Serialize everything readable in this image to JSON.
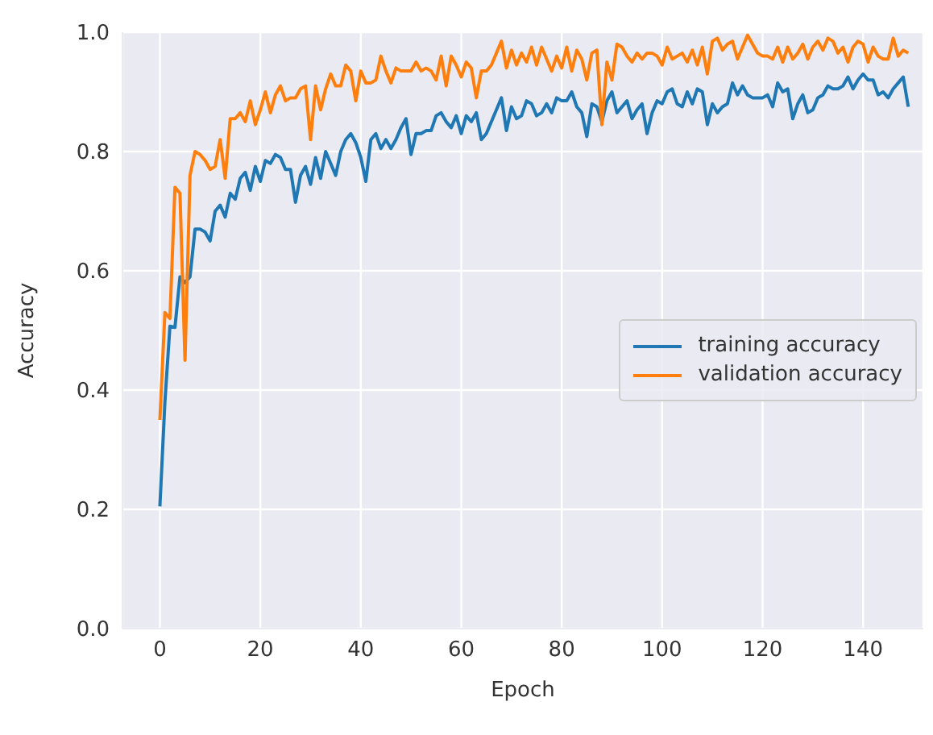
{
  "chart_data": {
    "type": "line",
    "xlabel": "Epoch",
    "ylabel": "Accuracy",
    "x": [
      0,
      1,
      2,
      3,
      4,
      5,
      6,
      7,
      8,
      9,
      10,
      11,
      12,
      13,
      14,
      15,
      16,
      17,
      18,
      19,
      20,
      21,
      22,
      23,
      24,
      25,
      26,
      27,
      28,
      29,
      30,
      31,
      32,
      33,
      34,
      35,
      36,
      37,
      38,
      39,
      40,
      41,
      42,
      43,
      44,
      45,
      46,
      47,
      48,
      49,
      50,
      51,
      52,
      53,
      54,
      55,
      56,
      57,
      58,
      59,
      60,
      61,
      62,
      63,
      64,
      65,
      66,
      67,
      68,
      69,
      70,
      71,
      72,
      73,
      74,
      75,
      76,
      77,
      78,
      79,
      80,
      81,
      82,
      83,
      84,
      85,
      86,
      87,
      88,
      89,
      90,
      91,
      92,
      93,
      94,
      95,
      96,
      97,
      98,
      99,
      100,
      101,
      102,
      103,
      104,
      105,
      106,
      107,
      108,
      109,
      110,
      111,
      112,
      113,
      114,
      115,
      116,
      117,
      118,
      119,
      120,
      121,
      122,
      123,
      124,
      125,
      126,
      127,
      128,
      129,
      130,
      131,
      132,
      133,
      134,
      135,
      136,
      137,
      138,
      139,
      140,
      141,
      142,
      143,
      144,
      145,
      146,
      147,
      148,
      149
    ],
    "series": [
      {
        "name": "training accuracy",
        "color": "#1f77b4",
        "values": [
          0.205,
          0.38,
          0.507,
          0.505,
          0.59,
          0.58,
          0.59,
          0.67,
          0.67,
          0.665,
          0.65,
          0.7,
          0.71,
          0.69,
          0.73,
          0.72,
          0.755,
          0.765,
          0.735,
          0.775,
          0.75,
          0.785,
          0.78,
          0.795,
          0.79,
          0.77,
          0.77,
          0.715,
          0.76,
          0.775,
          0.745,
          0.79,
          0.755,
          0.8,
          0.78,
          0.76,
          0.8,
          0.82,
          0.83,
          0.815,
          0.79,
          0.75,
          0.82,
          0.83,
          0.805,
          0.82,
          0.805,
          0.82,
          0.84,
          0.855,
          0.795,
          0.83,
          0.83,
          0.835,
          0.835,
          0.86,
          0.865,
          0.85,
          0.84,
          0.86,
          0.83,
          0.86,
          0.85,
          0.865,
          0.82,
          0.83,
          0.85,
          0.87,
          0.89,
          0.835,
          0.875,
          0.855,
          0.86,
          0.885,
          0.88,
          0.86,
          0.865,
          0.88,
          0.865,
          0.89,
          0.885,
          0.885,
          0.9,
          0.875,
          0.865,
          0.825,
          0.88,
          0.875,
          0.85,
          0.885,
          0.9,
          0.865,
          0.875,
          0.885,
          0.855,
          0.87,
          0.88,
          0.83,
          0.865,
          0.885,
          0.88,
          0.9,
          0.905,
          0.88,
          0.875,
          0.9,
          0.88,
          0.905,
          0.9,
          0.845,
          0.88,
          0.865,
          0.875,
          0.88,
          0.915,
          0.895,
          0.91,
          0.895,
          0.89,
          0.89,
          0.89,
          0.895,
          0.875,
          0.915,
          0.9,
          0.905,
          0.855,
          0.88,
          0.895,
          0.865,
          0.87,
          0.89,
          0.895,
          0.91,
          0.905,
          0.905,
          0.91,
          0.925,
          0.905,
          0.92,
          0.93,
          0.92,
          0.92,
          0.895,
          0.9,
          0.89,
          0.905,
          0.915,
          0.925,
          0.875
        ]
      },
      {
        "name": "validation accuracy",
        "color": "#ff7f0e",
        "values": [
          0.35,
          0.53,
          0.52,
          0.74,
          0.73,
          0.45,
          0.76,
          0.8,
          0.795,
          0.785,
          0.77,
          0.775,
          0.82,
          0.755,
          0.855,
          0.855,
          0.865,
          0.85,
          0.885,
          0.845,
          0.87,
          0.9,
          0.865,
          0.895,
          0.91,
          0.885,
          0.89,
          0.89,
          0.905,
          0.91,
          0.82,
          0.91,
          0.87,
          0.905,
          0.93,
          0.91,
          0.91,
          0.945,
          0.935,
          0.885,
          0.935,
          0.915,
          0.915,
          0.92,
          0.96,
          0.935,
          0.915,
          0.94,
          0.935,
          0.935,
          0.935,
          0.95,
          0.935,
          0.94,
          0.935,
          0.92,
          0.96,
          0.91,
          0.96,
          0.945,
          0.925,
          0.95,
          0.94,
          0.89,
          0.935,
          0.935,
          0.945,
          0.965,
          0.985,
          0.94,
          0.97,
          0.945,
          0.965,
          0.95,
          0.975,
          0.945,
          0.975,
          0.955,
          0.935,
          0.96,
          0.94,
          0.975,
          0.935,
          0.97,
          0.955,
          0.92,
          0.965,
          0.97,
          0.845,
          0.95,
          0.92,
          0.98,
          0.975,
          0.96,
          0.95,
          0.965,
          0.955,
          0.965,
          0.965,
          0.96,
          0.945,
          0.975,
          0.955,
          0.96,
          0.965,
          0.95,
          0.97,
          0.945,
          0.975,
          0.93,
          0.985,
          0.99,
          0.97,
          0.98,
          0.985,
          0.955,
          0.975,
          0.995,
          0.98,
          0.965,
          0.96,
          0.96,
          0.955,
          0.975,
          0.95,
          0.975,
          0.955,
          0.965,
          0.98,
          0.955,
          0.975,
          0.985,
          0.97,
          0.99,
          0.985,
          0.965,
          0.975,
          0.95,
          0.975,
          0.985,
          0.98,
          0.95,
          0.975,
          0.96,
          0.955,
          0.955,
          0.99,
          0.96,
          0.97,
          0.965
        ]
      }
    ],
    "xlim": [
      -7.45,
      152
    ],
    "xticks": [
      0,
      20,
      40,
      60,
      80,
      100,
      120,
      140
    ],
    "ylim": [
      0,
      1
    ],
    "yticks": [
      {
        "value": 0,
        "label": "0.0"
      },
      {
        "value": 0.2,
        "label": "0.2"
      },
      {
        "value": 0.4,
        "label": "0.4"
      },
      {
        "value": 0.6,
        "label": "0.6"
      },
      {
        "value": 0.8,
        "label": "0.8"
      },
      {
        "value": 1,
        "label": "1.0"
      }
    ],
    "grid": true,
    "legend": "right",
    "marker": "none",
    "line_style": "solid"
  }
}
